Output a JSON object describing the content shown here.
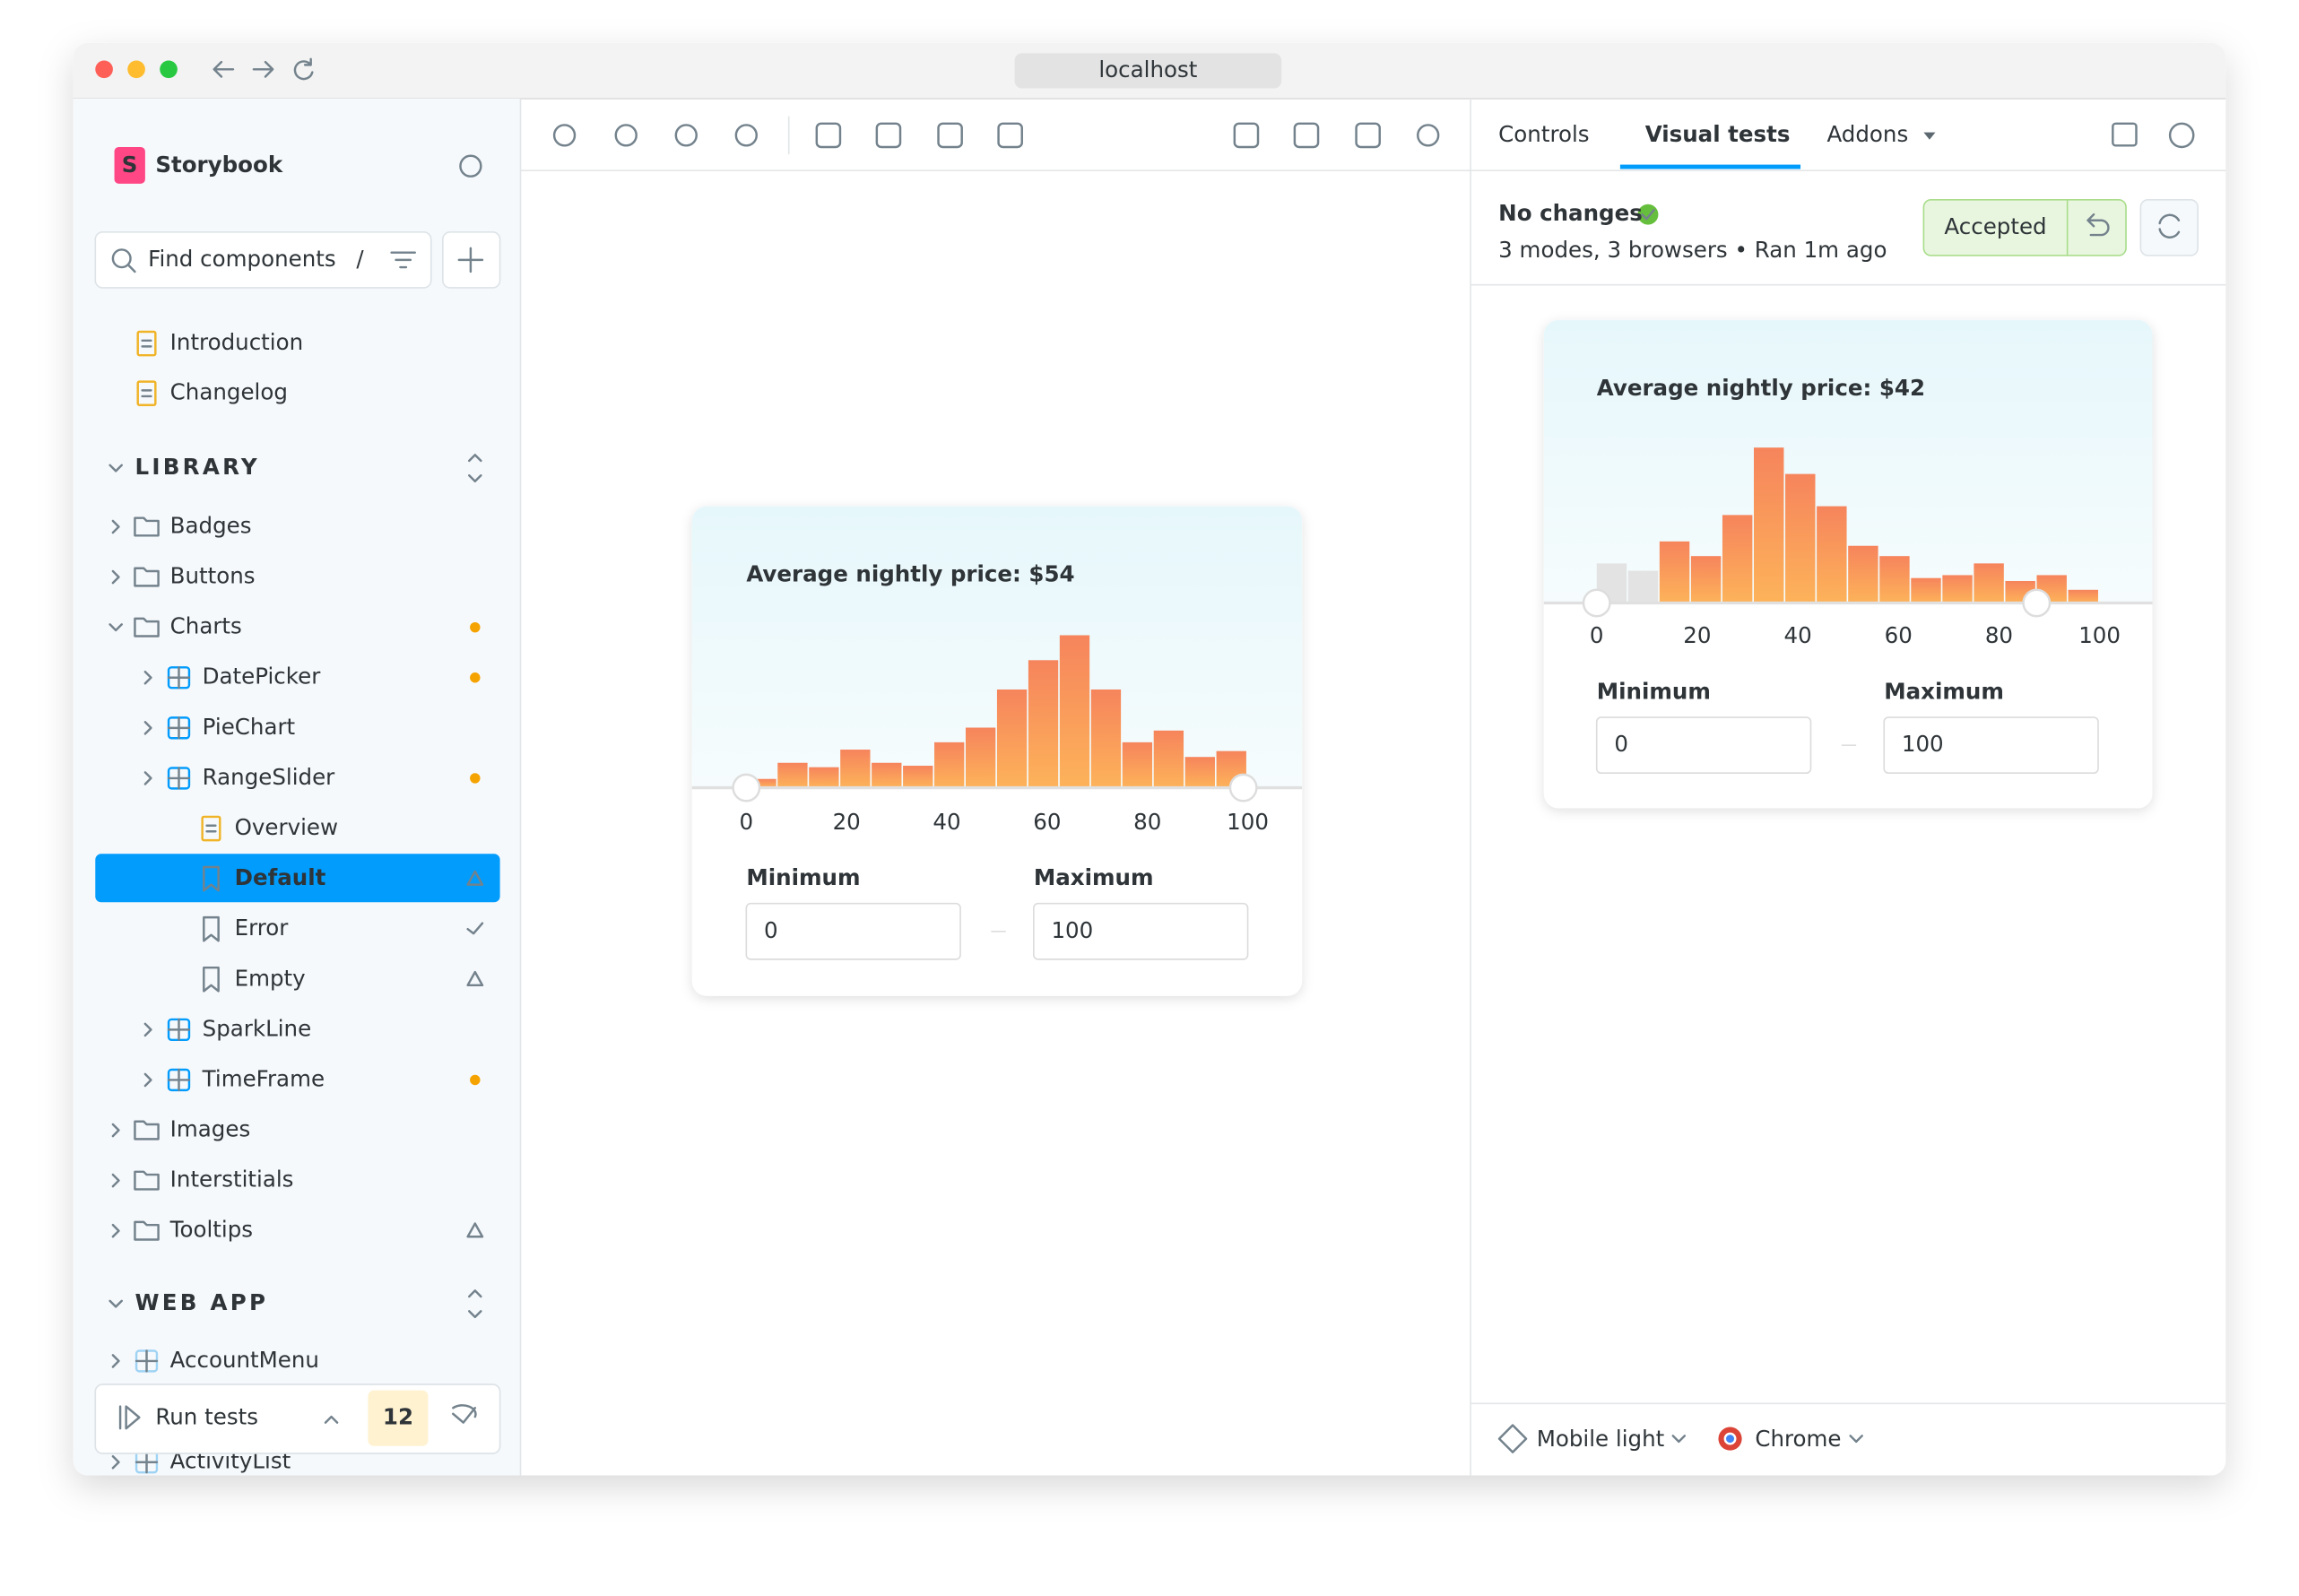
{
  "browser": {
    "url": "localhost"
  },
  "sidebar": {
    "brand": "Storybook",
    "search_placeholder": "Find components",
    "search_shortcut": "/",
    "top_items": [
      "Introduction",
      "Changelog"
    ],
    "sections": [
      {
        "title": "LIBRARY",
        "items": [
          "Badges",
          "Buttons",
          "Charts",
          "DatePicker",
          "PieChart",
          "RangeSlider",
          "Overview",
          "Default",
          "Error",
          "Empty",
          "SparkLine",
          "TimeFrame",
          "Images",
          "Interstitials",
          "Tooltips"
        ]
      },
      {
        "title": "WEB APP",
        "items": [
          "AccountMenu",
          "ActivityList"
        ]
      }
    ],
    "run_tests": {
      "label": "Run tests",
      "count": 12
    }
  },
  "preview": {
    "title": "Average nightly price: $54",
    "histogram": {
      "type": "bar",
      "values": [
        6,
        17,
        14,
        26,
        17,
        15,
        31,
        41,
        67,
        87,
        104,
        67,
        31,
        39,
        21,
        25
      ],
      "xlim": [
        0,
        100
      ],
      "xticks": [
        0,
        20,
        40,
        60,
        80,
        100
      ]
    },
    "min_label": "Minimum",
    "max_label": "Maximum",
    "min_value": 0,
    "max_value": 100
  },
  "panel": {
    "tabs": [
      "Controls",
      "Visual tests",
      "Addons"
    ],
    "status": "No changes",
    "details": "3 modes, 3 browsers • Ran 1m ago",
    "accepted": "Accepted",
    "snapshot": {
      "title": "Average nightly price: $42",
      "histogram": {
        "type": "bar",
        "values": [
          27,
          22,
          42,
          32,
          60,
          106,
          88,
          66,
          39,
          32,
          17,
          19,
          27,
          15,
          19,
          9
        ],
        "xlim": [
          0,
          100
        ],
        "xticks": [
          0,
          20,
          40,
          60,
          80,
          100
        ]
      },
      "min_label": "Minimum",
      "max_label": "Maximum",
      "min_value": 0,
      "max_value": 100
    },
    "footer": {
      "mode": "Mobile light",
      "browser": "Chrome"
    }
  }
}
